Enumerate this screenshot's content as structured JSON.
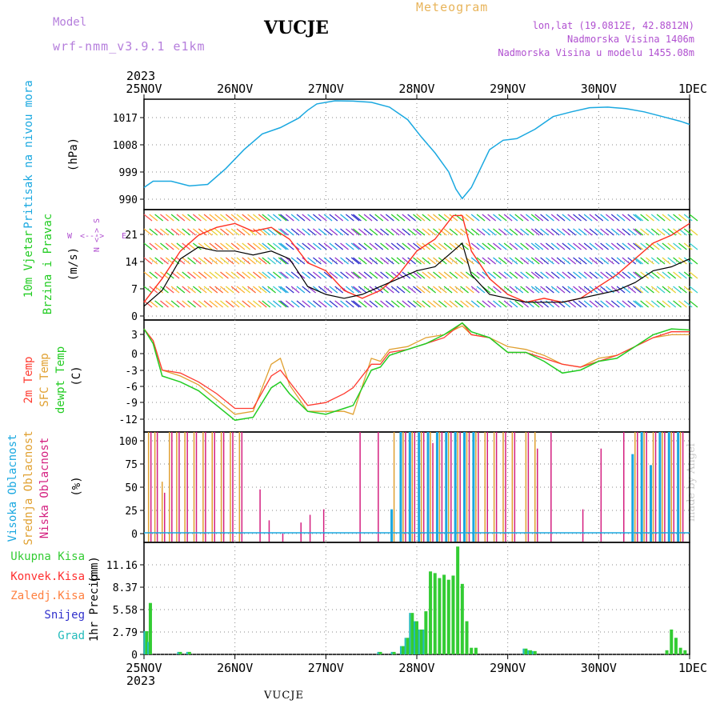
{
  "header": {
    "model_label": "Model",
    "model_version": "wrf-nmm_v3.9.1 e1km",
    "station": "VUCJE",
    "title": "Meteogram",
    "coords": "lon,lat (19.0812E, 42.8812N)",
    "elevation": "Nadmorska Visina 1406m",
    "model_elevation": "Nadmorska Visina u modelu 1455.08m"
  },
  "footer": {
    "station": "VUCJE",
    "credit": "made by Angel"
  },
  "time_axis": {
    "year": "2023",
    "labels": [
      "25NOV",
      "26NOV",
      "27NOV",
      "28NOV",
      "29NOV",
      "30NOV",
      "1DEC"
    ]
  },
  "colors": {
    "pressure": "#1aa8e0",
    "wind": "#11aa11",
    "wind_speed": "#000000",
    "gust": "#ff3020",
    "t2m": "#ff3b30",
    "tsfc": "#e0a030",
    "dewpt": "#22cc22",
    "cloud_high": "#1aa8e0",
    "cloud_mid": "#e0a030",
    "cloud_low": "#d42080",
    "precip_total": "#33cc33",
    "precip_conv": "#ff3030",
    "precip_frz": "#ff8040",
    "precip_snow": "#3030cc",
    "precip_grad": "#22bbbb",
    "grid": "#888888",
    "purple": "#b050d0"
  },
  "chart_data": [
    {
      "type": "line",
      "panel": "pressure",
      "ylabel": [
        "Pritisak na nivou mora",
        "(hPa)"
      ],
      "yticks": [
        "1017",
        "1008",
        "999",
        "990"
      ],
      "ylim": [
        986,
        1021
      ],
      "x_days": [
        0,
        0.1,
        0.3,
        0.5,
        0.7,
        0.9,
        1.1,
        1.3,
        1.5,
        1.7,
        1.8,
        1.9,
        2.1,
        2.3,
        2.5,
        2.7,
        2.9,
        3.05,
        3.2,
        3.35,
        3.43,
        3.5,
        3.6,
        3.7,
        3.8,
        3.95,
        4.1,
        4.3,
        4.5,
        4.7,
        4.9,
        5.1,
        5.3,
        5.5,
        5.7,
        5.9,
        6.0
      ],
      "series": [
        {
          "values": [
            993,
            995,
            995,
            993.5,
            994,
            999,
            1005,
            1010,
            1012,
            1015,
            1017.5,
            1019.5,
            1020.5,
            1020.4,
            1020,
            1018.5,
            1014.5,
            1009,
            1004,
            998,
            992.5,
            989.5,
            993,
            999,
            1005,
            1008,
            1008.5,
            1011.5,
            1015.5,
            1017,
            1018.3,
            1018.5,
            1018,
            1017,
            1015.5,
            1014,
            1013
          ]
        }
      ]
    },
    {
      "type": "line",
      "panel": "wind",
      "ylabel": [
        "10m Vjetar",
        "Brzina i Pravac",
        "(m/s)"
      ],
      "yticks": [
        "21",
        "14",
        "7",
        "0"
      ],
      "ylim": [
        -1.5,
        26.5
      ],
      "compass": [
        "N",
        "<->",
        "W",
        "->",
        "E",
        "<-",
        "S"
      ],
      "x_days": [
        0,
        0.2,
        0.4,
        0.6,
        0.8,
        1.0,
        1.2,
        1.4,
        1.6,
        1.8,
        2.0,
        2.2,
        2.4,
        2.6,
        2.8,
        3.0,
        3.2,
        3.4,
        3.5,
        3.6,
        3.8,
        4.0,
        4.2,
        4.4,
        4.6,
        4.8,
        5.0,
        5.2,
        5.4,
        5.6,
        5.8,
        6.0
      ],
      "series": [
        {
          "name": "speed",
          "values": [
            2,
            6,
            14,
            17,
            16,
            16,
            15,
            16,
            14,
            7,
            5,
            4,
            5,
            7,
            9,
            11,
            12,
            16,
            18,
            10,
            5,
            4,
            3,
            3,
            3,
            4,
            5,
            6,
            8,
            11,
            12,
            14
          ]
        },
        {
          "name": "gust",
          "values": [
            3,
            9,
            16,
            20,
            22,
            23,
            21,
            22,
            19,
            13,
            11,
            6,
            4,
            6,
            10,
            16,
            19,
            25,
            25,
            16,
            9,
            5,
            3,
            4,
            3,
            4,
            7,
            10,
            14,
            18,
            20,
            23
          ]
        }
      ]
    },
    {
      "type": "line",
      "panel": "temperature",
      "ylabel": [
        "2m Temp",
        "SFC Temp",
        "dewpt Temp",
        "(C)"
      ],
      "yticks": [
        "3",
        "0",
        "-3",
        "-6",
        "-9",
        "-12"
      ],
      "ylim": [
        -14.5,
        4.5
      ],
      "x_days": [
        0,
        0.1,
        0.2,
        0.4,
        0.6,
        0.8,
        1.0,
        1.2,
        1.4,
        1.5,
        1.6,
        1.8,
        2.0,
        2.2,
        2.3,
        2.5,
        2.6,
        2.7,
        2.9,
        3.1,
        3.3,
        3.5,
        3.6,
        3.8,
        4.0,
        4.2,
        4.4,
        4.6,
        4.8,
        5.0,
        5.2,
        5.4,
        5.6,
        5.8,
        6.0
      ],
      "series": [
        {
          "name": "2m Temp",
          "values": [
            3,
            1,
            -4,
            -4.5,
            -6,
            -8,
            -10.5,
            -10.5,
            -5,
            -4,
            -6,
            -10,
            -9.5,
            -8,
            -7,
            -3,
            -3,
            -1,
            -0.5,
            0.5,
            1.5,
            4,
            2,
            1.5,
            -1,
            -1,
            -2,
            -3,
            -3.5,
            -2.5,
            -1.5,
            0,
            1.5,
            2.5,
            2.5
          ]
        },
        {
          "name": "SFC Temp",
          "values": [
            3,
            1,
            -4,
            -5,
            -6.5,
            -9,
            -11.5,
            -11,
            -3,
            -2,
            -6.5,
            -11,
            -11,
            -11,
            -11.5,
            -2,
            -2.5,
            -0.5,
            0,
            1.5,
            2,
            3.5,
            2,
            1.5,
            0,
            -0.5,
            -1.5,
            -3,
            -3.5,
            -2,
            -1.5,
            0,
            1.5,
            2,
            2
          ]
        },
        {
          "name": "dewpt Temp",
          "values": [
            3,
            0.5,
            -5,
            -6,
            -7.5,
            -10,
            -12.5,
            -12,
            -7,
            -6,
            -8,
            -11,
            -11.5,
            -10.5,
            -10,
            -4,
            -3.5,
            -1.5,
            -0.5,
            0.5,
            2,
            4,
            2.5,
            1.5,
            -1,
            -1,
            -2.5,
            -4.5,
            -4,
            -2.5,
            -2,
            0,
            2,
            3,
            2.8
          ]
        }
      ]
    },
    {
      "type": "bar",
      "panel": "cloud",
      "ylabel": [
        "Visoka Oblacnost",
        "Srednja Oblacnost",
        "Niska Oblacnost",
        "(%)"
      ],
      "yticks": [
        "100",
        "75",
        "50",
        "25",
        "0"
      ],
      "ylim": [
        0,
        100
      ],
      "bars": [
        {
          "x": 0.05,
          "values": [
            0,
            100,
            100
          ]
        },
        {
          "x": 0.12,
          "values": [
            0,
            100,
            100
          ]
        },
        {
          "x": 0.2,
          "values": [
            0,
            55,
            45
          ]
        },
        {
          "x": 0.28,
          "values": [
            0,
            100,
            100
          ]
        },
        {
          "x": 0.36,
          "values": [
            0,
            100,
            100
          ]
        },
        {
          "x": 0.45,
          "values": [
            0,
            100,
            100
          ]
        },
        {
          "x": 0.55,
          "values": [
            0,
            100,
            100
          ]
        },
        {
          "x": 0.65,
          "values": [
            0,
            100,
            100
          ]
        },
        {
          "x": 0.75,
          "values": [
            0,
            100,
            100
          ]
        },
        {
          "x": 0.85,
          "values": [
            0,
            100,
            100
          ]
        },
        {
          "x": 0.95,
          "values": [
            0,
            100,
            100
          ]
        },
        {
          "x": 1.05,
          "values": [
            0,
            100,
            100
          ]
        },
        {
          "x": 1.25,
          "values": [
            0,
            0,
            48
          ]
        },
        {
          "x": 1.35,
          "values": [
            0,
            0,
            20
          ]
        },
        {
          "x": 1.5,
          "values": [
            0,
            0,
            8
          ]
        },
        {
          "x": 1.7,
          "values": [
            0,
            0,
            18
          ]
        },
        {
          "x": 1.8,
          "values": [
            0,
            0,
            25
          ]
        },
        {
          "x": 1.95,
          "values": [
            0,
            0,
            30
          ]
        },
        {
          "x": 2.35,
          "values": [
            0,
            0,
            100
          ]
        },
        {
          "x": 2.55,
          "values": [
            0,
            0,
            100
          ]
        },
        {
          "x": 2.75,
          "values": [
            30,
            100,
            0
          ]
        },
        {
          "x": 2.85,
          "values": [
            100,
            100,
            100
          ]
        },
        {
          "x": 2.95,
          "values": [
            100,
            100,
            100
          ]
        },
        {
          "x": 3.05,
          "values": [
            100,
            100,
            100
          ]
        },
        {
          "x": 3.15,
          "values": [
            100,
            100,
            90
          ]
        },
        {
          "x": 3.25,
          "values": [
            100,
            100,
            100
          ]
        },
        {
          "x": 3.35,
          "values": [
            100,
            100,
            100
          ]
        },
        {
          "x": 3.45,
          "values": [
            100,
            100,
            100
          ]
        },
        {
          "x": 3.55,
          "values": [
            100,
            100,
            100
          ]
        },
        {
          "x": 3.65,
          "values": [
            100,
            100,
            100
          ]
        },
        {
          "x": 3.75,
          "values": [
            0,
            100,
            100
          ]
        },
        {
          "x": 3.85,
          "values": [
            0,
            100,
            100
          ]
        },
        {
          "x": 3.95,
          "values": [
            0,
            100,
            100
          ]
        },
        {
          "x": 4.05,
          "values": [
            0,
            100,
            100
          ]
        },
        {
          "x": 4.2,
          "values": [
            0,
            100,
            100
          ]
        },
        {
          "x": 4.3,
          "values": [
            0,
            100,
            85
          ]
        },
        {
          "x": 4.45,
          "values": [
            0,
            0,
            100
          ]
        },
        {
          "x": 4.8,
          "values": [
            0,
            0,
            30
          ]
        },
        {
          "x": 5.0,
          "values": [
            0,
            0,
            85
          ]
        },
        {
          "x": 5.25,
          "values": [
            0,
            0,
            100
          ]
        },
        {
          "x": 5.4,
          "values": [
            80,
            100,
            100
          ]
        },
        {
          "x": 5.5,
          "values": [
            100,
            100,
            100
          ]
        },
        {
          "x": 5.6,
          "values": [
            70,
            100,
            100
          ]
        },
        {
          "x": 5.7,
          "values": [
            100,
            100,
            100
          ]
        },
        {
          "x": 5.8,
          "values": [
            100,
            100,
            100
          ]
        },
        {
          "x": 5.9,
          "values": [
            100,
            100,
            100
          ]
        }
      ]
    },
    {
      "type": "bar",
      "panel": "precipitation",
      "ylabel": [
        "1hr Precip",
        "(mm)"
      ],
      "legend": [
        "Ukupna Kisa",
        "Konvek.Kisa",
        "Zaledj.Kisa",
        "Snijeg",
        "Grad"
      ],
      "yticks": [
        "11.16",
        "8.37",
        "5.58",
        "2.79",
        "0"
      ],
      "ylim": [
        0,
        13.5
      ],
      "bars": [
        {
          "x": 0.03,
          "total": 2.8,
          "snow": 2.8
        },
        {
          "x": 0.07,
          "total": 6.2,
          "snow": 1.5
        },
        {
          "x": 0.4,
          "total": 0.3,
          "snow": 0.3
        },
        {
          "x": 0.5,
          "total": 0.3,
          "snow": 0.3
        },
        {
          "x": 2.6,
          "total": 0.3,
          "snow": 0.3
        },
        {
          "x": 2.75,
          "total": 0.3,
          "snow": 0.3
        },
        {
          "x": 2.85,
          "total": 1.0,
          "snow": 1.0
        },
        {
          "x": 2.9,
          "total": 2.0,
          "snow": 2.0
        },
        {
          "x": 2.95,
          "total": 5.0,
          "snow": 5.0
        },
        {
          "x": 3.0,
          "total": 4.0,
          "snow": 4.0
        },
        {
          "x": 3.05,
          "total": 3.0,
          "snow": 3.0
        },
        {
          "x": 3.1,
          "total": 5.2,
          "snow": 3.0
        },
        {
          "x": 3.15,
          "total": 10.0,
          "snow": 0
        },
        {
          "x": 3.2,
          "total": 9.8,
          "snow": 0
        },
        {
          "x": 3.25,
          "total": 9.2,
          "snow": 0
        },
        {
          "x": 3.3,
          "total": 9.6,
          "snow": 0
        },
        {
          "x": 3.35,
          "total": 9.0,
          "snow": 0
        },
        {
          "x": 3.4,
          "total": 9.5,
          "snow": 0
        },
        {
          "x": 3.45,
          "total": 13.0,
          "snow": 0
        },
        {
          "x": 3.5,
          "total": 8.5,
          "snow": 0
        },
        {
          "x": 3.55,
          "total": 4.0,
          "snow": 0
        },
        {
          "x": 3.6,
          "total": 0.8,
          "snow": 0
        },
        {
          "x": 3.65,
          "total": 0.8,
          "snow": 0
        },
        {
          "x": 4.2,
          "total": 0.7,
          "snow": 0.7
        },
        {
          "x": 4.25,
          "total": 0.5,
          "snow": 0.5
        },
        {
          "x": 4.3,
          "total": 0.4,
          "snow": 0.4
        },
        {
          "x": 5.75,
          "total": 0.5,
          "snow": 0
        },
        {
          "x": 5.8,
          "total": 3.0,
          "snow": 0
        },
        {
          "x": 5.85,
          "total": 2.0,
          "snow": 0
        },
        {
          "x": 5.9,
          "total": 0.8,
          "snow": 0
        },
        {
          "x": 5.95,
          "total": 0.5,
          "snow": 0
        }
      ]
    }
  ]
}
